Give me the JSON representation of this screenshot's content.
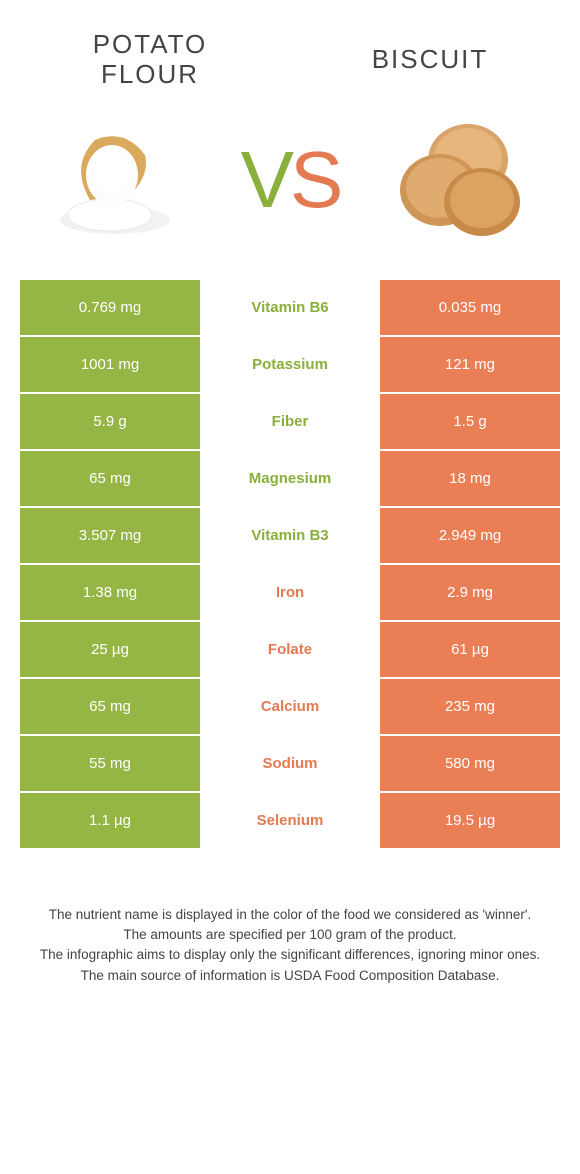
{
  "titles": {
    "left": "POTATO\nFLOUR",
    "right": "BISCUIT"
  },
  "vs": {
    "v": "V",
    "s": "S"
  },
  "colors": {
    "green_bg": "#95b544",
    "orange_bg": "#ea7e55",
    "green_text": "#8aaf3a",
    "orange_text": "#e37a52",
    "white": "#ffffff",
    "body_text": "#444444"
  },
  "rows": [
    {
      "left": "0.769 mg",
      "label": "Vitamin B6",
      "winner": "green",
      "right": "0.035 mg"
    },
    {
      "left": "1001 mg",
      "label": "Potassium",
      "winner": "green",
      "right": "121 mg"
    },
    {
      "left": "5.9 g",
      "label": "Fiber",
      "winner": "green",
      "right": "1.5 g"
    },
    {
      "left": "65 mg",
      "label": "Magnesium",
      "winner": "green",
      "right": "18 mg"
    },
    {
      "left": "3.507 mg",
      "label": "Vitamin B3",
      "winner": "green",
      "right": "2.949 mg"
    },
    {
      "left": "1.38 mg",
      "label": "Iron",
      "winner": "orange",
      "right": "2.9 mg"
    },
    {
      "left": "25 µg",
      "label": "Folate",
      "winner": "orange",
      "right": "61 µg"
    },
    {
      "left": "65 mg",
      "label": "Calcium",
      "winner": "orange",
      "right": "235 mg"
    },
    {
      "left": "55 mg",
      "label": "Sodium",
      "winner": "orange",
      "right": "580 mg"
    },
    {
      "left": "1.1 µg",
      "label": "Selenium",
      "winner": "orange",
      "right": "19.5 µg"
    }
  ],
  "footer": [
    "The nutrient name is displayed in the color of the food we considered as 'winner'.",
    "The amounts are specified per 100 gram of the product.",
    "The infographic aims to display only the significant differences, ignoring minor ones.",
    "The main source of information is USDA Food Composition Database."
  ]
}
